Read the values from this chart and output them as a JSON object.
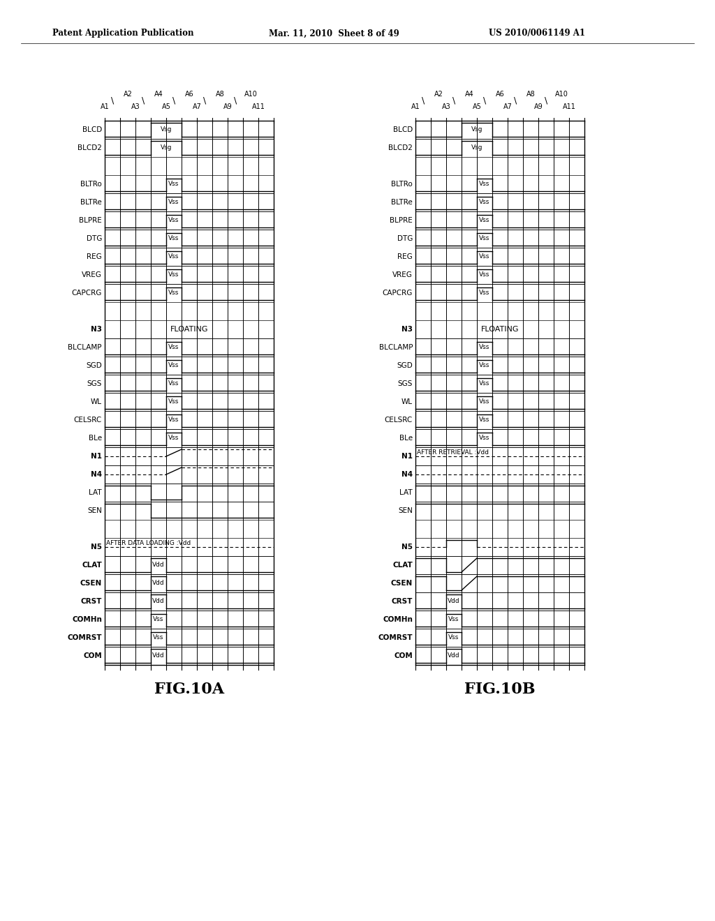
{
  "bg_color": "#ffffff",
  "header_text": "Patent Application Publication",
  "header_center": "Mar. 11, 2010  Sheet 8 of 49",
  "header_right": "US 2010/0061149 A1",
  "fig_label_a": "FIG.10A",
  "fig_label_b": "FIG.10B"
}
